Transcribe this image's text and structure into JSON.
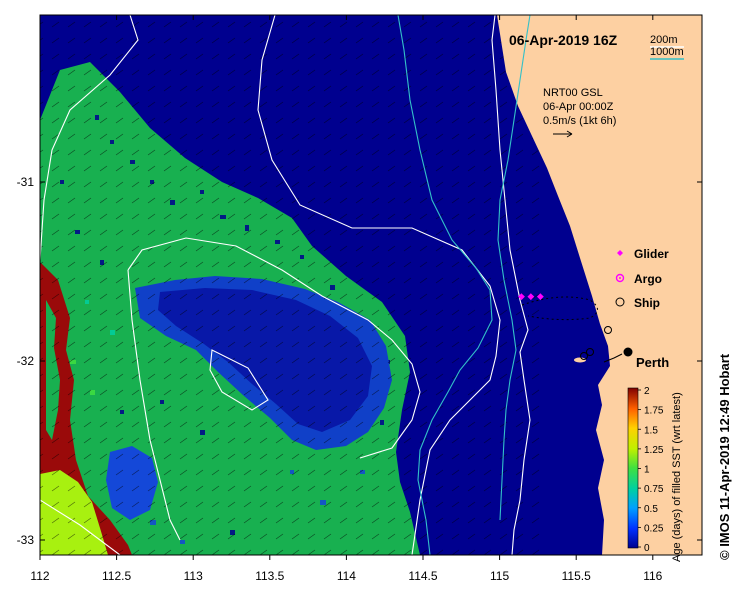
{
  "map": {
    "datetime_title": "06-Apr-2019 16Z",
    "depth_contours": [
      {
        "label": "200m",
        "color": "#ffffff"
      },
      {
        "label": "1000m",
        "color": "#33c0c8"
      }
    ],
    "current_info": {
      "product": "NRT00 GSL",
      "date": "06-Apr 00:00Z",
      "scale": "0.5m/s (1kt 6h)"
    },
    "legend": [
      {
        "label": "Glider",
        "symbol": "diamond",
        "color": "#ff00ff"
      },
      {
        "label": "Argo",
        "symbol": "star-circle",
        "color": "#ff00ff"
      },
      {
        "label": "Ship",
        "symbol": "circle",
        "color": "#000000"
      }
    ],
    "city": "Perth",
    "credit": "© IMOS 11-Apr-2019 12:49 Hobart",
    "colors": {
      "land": "#fdd0a2",
      "deep_blue": "#00008f",
      "green": "#18b050",
      "mid_blue": "#1448d8",
      "dark_red": "#9a0a0a",
      "lime": "#a8f010"
    }
  },
  "axes": {
    "x_ticks": [
      "112",
      "112.5",
      "113",
      "113.5",
      "114",
      "114.5",
      "115",
      "115.5",
      "116"
    ],
    "y_ticks": [
      "-31",
      "-32",
      "-33"
    ]
  },
  "colorbar": {
    "label": "Age (days) of filled SST (wrt latest)",
    "ticks": [
      "2",
      "1.75",
      "1.5",
      "1.25",
      "1",
      "0.75",
      "0.5",
      "0.25",
      "0"
    ],
    "range": [
      0,
      2
    ]
  }
}
